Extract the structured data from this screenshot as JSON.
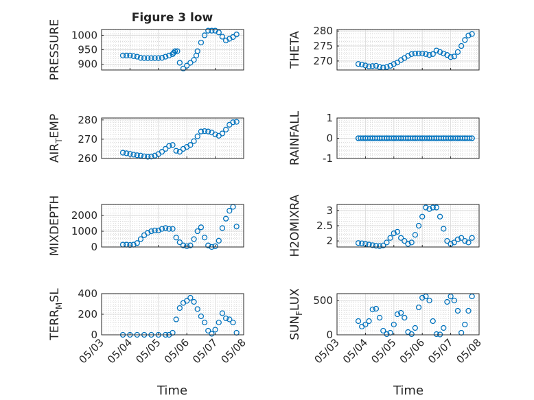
{
  "figure": {
    "title": "Figure 3 low",
    "x_label": "Time",
    "x_tick_labels": [
      "05/03",
      "05/04",
      "05/05",
      "05/06",
      "05/07",
      "05/08"
    ]
  },
  "colors": {
    "marker": "#0072BD",
    "axes": "#262626",
    "grid": "#c8c8c8"
  },
  "chart_data": [
    {
      "type": "scatter",
      "ylabel": "PRESSURE",
      "ylim": [
        880,
        1020
      ],
      "yticks": [
        "1000",
        "950",
        "900"
      ],
      "grid": true,
      "x": [
        "05/03 18:00",
        "05/03 21:00",
        "05/04 00:00",
        "05/04 03:00",
        "05/04 06:00",
        "05/04 09:00",
        "05/04 12:00",
        "05/04 15:00",
        "05/04 18:00",
        "05/04 21:00",
        "05/05 00:00",
        "05/05 03:00",
        "05/05 06:00",
        "05/05 09:00",
        "05/05 12:00",
        "05/05 13:00",
        "05/05 14:00",
        "05/05 16:00",
        "05/05 18:00",
        "05/05 21:00",
        "05/06 00:00",
        "05/06 03:00",
        "05/06 06:00",
        "05/06 08:00",
        "05/06 09:00",
        "05/06 12:00",
        "05/06 15:00",
        "05/06 18:00",
        "05/06 21:00",
        "05/07 00:00",
        "05/07 03:00",
        "05/07 06:00",
        "05/07 09:00",
        "05/07 12:00",
        "05/07 15:00",
        "05/07 18:00"
      ],
      "y": [
        930,
        930,
        930,
        928,
        926,
        922,
        921,
        921,
        921,
        921,
        921,
        922,
        926,
        930,
        935,
        940,
        945,
        945,
        905,
        885,
        895,
        905,
        915,
        930,
        945,
        975,
        1000,
        1016,
        1016,
        1016,
        1010,
        995,
        982,
        988,
        994,
        1003
      ]
    },
    {
      "type": "scatter",
      "ylabel": "THETA",
      "ylim": [
        267,
        280.5
      ],
      "yticks": [
        "280",
        "275",
        "270"
      ],
      "grid": true,
      "x": [
        "05/03 18:00",
        "05/03 21:00",
        "05/04 00:00",
        "05/04 03:00",
        "05/04 06:00",
        "05/04 09:00",
        "05/04 12:00",
        "05/04 15:00",
        "05/04 18:00",
        "05/04 21:00",
        "05/05 00:00",
        "05/05 03:00",
        "05/05 06:00",
        "05/05 09:00",
        "05/05 12:00",
        "05/05 15:00",
        "05/05 18:00",
        "05/05 21:00",
        "05/06 00:00",
        "05/06 03:00",
        "05/06 06:00",
        "05/06 09:00",
        "05/06 12:00",
        "05/06 15:00",
        "05/06 18:00",
        "05/06 21:00",
        "05/07 00:00",
        "05/07 03:00",
        "05/07 06:00",
        "05/07 09:00",
        "05/07 12:00",
        "05/07 15:00",
        "05/07 18:00"
      ],
      "y": [
        269,
        268.8,
        268.5,
        268.2,
        268.3,
        268.4,
        268,
        267.8,
        268,
        268.4,
        269,
        269.5,
        270.3,
        271,
        271.7,
        272.3,
        272.5,
        272.5,
        272.5,
        272.3,
        272,
        272.3,
        273.5,
        273,
        272.5,
        272,
        271.3,
        271.5,
        273,
        275,
        277,
        278.5,
        279
      ]
    },
    {
      "type": "scatter",
      "ylabel": "AIR_T_EMP",
      "ylim": [
        260,
        281
      ],
      "yticks": [
        "280",
        "270",
        "260"
      ],
      "grid": true,
      "x": [
        "05/03 18:00",
        "05/03 21:00",
        "05/04 00:00",
        "05/04 03:00",
        "05/04 06:00",
        "05/04 09:00",
        "05/04 12:00",
        "05/04 15:00",
        "05/04 18:00",
        "05/04 21:00",
        "05/05 00:00",
        "05/05 03:00",
        "05/05 06:00",
        "05/05 09:00",
        "05/05 12:00",
        "05/05 15:00",
        "05/05 18:00",
        "05/05 21:00",
        "05/06 00:00",
        "05/06 03:00",
        "05/06 06:00",
        "05/06 09:00",
        "05/06 12:00",
        "05/06 15:00",
        "05/06 18:00",
        "05/06 21:00",
        "05/07 00:00",
        "05/07 03:00",
        "05/07 06:00",
        "05/07 09:00",
        "05/07 12:00",
        "05/07 15:00",
        "05/07 18:00"
      ],
      "y": [
        263,
        262.7,
        262.4,
        262,
        261.7,
        261.5,
        261.1,
        260.9,
        261,
        261.5,
        262.3,
        263.5,
        265,
        266.5,
        267,
        264,
        263.5,
        265,
        266,
        267,
        269,
        271.5,
        274,
        274.2,
        274,
        273.5,
        272.5,
        271.8,
        273,
        275,
        277.5,
        278.8,
        279
      ]
    },
    {
      "type": "scatter",
      "ylabel": "RAINFALL",
      "ylim": [
        -1,
        1
      ],
      "yticks": [
        "1",
        "0",
        "-1"
      ],
      "grid": true,
      "x": [
        "05/03 18:00",
        "05/04 00:00",
        "05/04 06:00",
        "05/04 12:00",
        "05/04 18:00",
        "05/05 00:00",
        "05/05 06:00",
        "05/05 12:00",
        "05/05 18:00",
        "05/06 00:00",
        "05/06 06:00",
        "05/06 12:00",
        "05/06 18:00",
        "05/07 00:00",
        "05/07 06:00",
        "05/07 12:00",
        "05/07 18:00"
      ],
      "y": [
        0,
        0,
        0,
        0,
        0,
        0,
        0,
        0,
        0,
        0,
        0,
        0,
        0,
        0,
        0,
        0,
        0
      ]
    },
    {
      "type": "scatter",
      "ylabel": "MIXDEPTH",
      "ylim": [
        0,
        2700
      ],
      "yticks": [
        "2000",
        "1000",
        "0"
      ],
      "grid": true,
      "x": [
        "05/03 18:00",
        "05/03 21:00",
        "05/04 00:00",
        "05/04 03:00",
        "05/04 06:00",
        "05/04 09:00",
        "05/04 12:00",
        "05/04 15:00",
        "05/04 18:00",
        "05/04 21:00",
        "05/05 00:00",
        "05/05 03:00",
        "05/05 06:00",
        "05/05 09:00",
        "05/05 12:00",
        "05/05 15:00",
        "05/05 18:00",
        "05/05 21:00",
        "05/06 00:00",
        "05/06 03:00",
        "05/06 06:00",
        "05/06 09:00",
        "05/06 12:00",
        "05/06 15:00",
        "05/06 18:00",
        "05/06 21:00",
        "05/07 00:00",
        "05/07 03:00",
        "05/07 06:00",
        "05/07 09:00",
        "05/07 12:00",
        "05/07 15:00",
        "05/07 18:00"
      ],
      "y": [
        150,
        150,
        130,
        150,
        250,
        500,
        750,
        900,
        1000,
        1050,
        1050,
        1150,
        1200,
        1150,
        1150,
        600,
        300,
        100,
        50,
        100,
        500,
        1000,
        1250,
        600,
        100,
        0,
        50,
        400,
        1200,
        1800,
        2300,
        2550,
        1300
      ]
    },
    {
      "type": "scatter",
      "ylabel": "H2OMIXRA",
      "ylim": [
        1.8,
        3.2
      ],
      "yticks": [
        "3",
        "2.5",
        "2"
      ],
      "grid": true,
      "x": [
        "05/03 18:00",
        "05/03 21:00",
        "05/04 00:00",
        "05/04 03:00",
        "05/04 06:00",
        "05/04 09:00",
        "05/04 12:00",
        "05/04 15:00",
        "05/04 18:00",
        "05/04 21:00",
        "05/05 00:00",
        "05/05 03:00",
        "05/05 06:00",
        "05/05 09:00",
        "05/05 12:00",
        "05/05 15:00",
        "05/05 18:00",
        "05/05 21:00",
        "05/06 00:00",
        "05/06 03:00",
        "05/06 06:00",
        "05/06 09:00",
        "05/06 12:00",
        "05/06 15:00",
        "05/06 18:00",
        "05/06 21:00",
        "05/07 00:00",
        "05/07 03:00",
        "05/07 06:00",
        "05/07 09:00",
        "05/07 12:00",
        "05/07 15:00",
        "05/07 18:00"
      ],
      "y": [
        1.93,
        1.92,
        1.9,
        1.88,
        1.86,
        1.84,
        1.83,
        1.85,
        1.95,
        2.1,
        2.25,
        2.3,
        2.1,
        2.0,
        1.9,
        1.95,
        2.2,
        2.5,
        2.8,
        3.1,
        3.05,
        3.1,
        3.1,
        2.8,
        2.4,
        2.0,
        1.9,
        1.95,
        2.05,
        2.1,
        2.0,
        1.95,
        2.1
      ]
    },
    {
      "type": "scatter",
      "ylabel": "TERR_M_SL",
      "ylim": [
        0,
        400
      ],
      "yticks": [
        "400",
        "200",
        "0"
      ],
      "grid": true,
      "x": [
        "05/03 18:00",
        "05/04 00:00",
        "05/04 06:00",
        "05/04 12:00",
        "05/04 18:00",
        "05/05 00:00",
        "05/05 06:00",
        "05/05 09:00",
        "05/05 12:00",
        "05/05 15:00",
        "05/05 18:00",
        "05/05 21:00",
        "05/06 00:00",
        "05/06 03:00",
        "05/06 06:00",
        "05/06 09:00",
        "05/06 12:00",
        "05/06 15:00",
        "05/06 18:00",
        "05/06 21:00",
        "05/07 00:00",
        "05/07 03:00",
        "05/07 06:00",
        "05/07 09:00",
        "05/07 12:00",
        "05/07 15:00",
        "05/07 18:00"
      ],
      "y": [
        0,
        0,
        0,
        0,
        0,
        0,
        0,
        0,
        20,
        150,
        260,
        310,
        330,
        360,
        320,
        250,
        180,
        120,
        40,
        10,
        50,
        120,
        210,
        160,
        150,
        120,
        20
      ]
    },
    {
      "type": "scatter",
      "ylabel": "SUN_F_LUX",
      "ylim": [
        0,
        600
      ],
      "yticks": [
        "500",
        "0"
      ],
      "grid": true,
      "x": [
        "05/03 18:00",
        "05/03 21:00",
        "05/04 00:00",
        "05/04 03:00",
        "05/04 06:00",
        "05/04 09:00",
        "05/04 12:00",
        "05/04 15:00",
        "05/04 18:00",
        "05/04 21:00",
        "05/05 00:00",
        "05/05 03:00",
        "05/05 06:00",
        "05/05 09:00",
        "05/05 12:00",
        "05/05 15:00",
        "05/05 18:00",
        "05/05 21:00",
        "05/06 00:00",
        "05/06 03:00",
        "05/06 06:00",
        "05/06 09:00",
        "05/06 12:00",
        "05/06 15:00",
        "05/06 18:00",
        "05/06 21:00",
        "05/07 00:00",
        "05/07 03:00",
        "05/07 06:00",
        "05/07 09:00",
        "05/07 12:00",
        "05/07 15:00",
        "05/07 18:00"
      ],
      "y": [
        200,
        120,
        150,
        200,
        370,
        380,
        250,
        60,
        10,
        30,
        150,
        300,
        320,
        250,
        40,
        10,
        100,
        400,
        540,
        560,
        500,
        200,
        10,
        5,
        100,
        480,
        560,
        500,
        350,
        30,
        150,
        350,
        560
      ]
    }
  ]
}
